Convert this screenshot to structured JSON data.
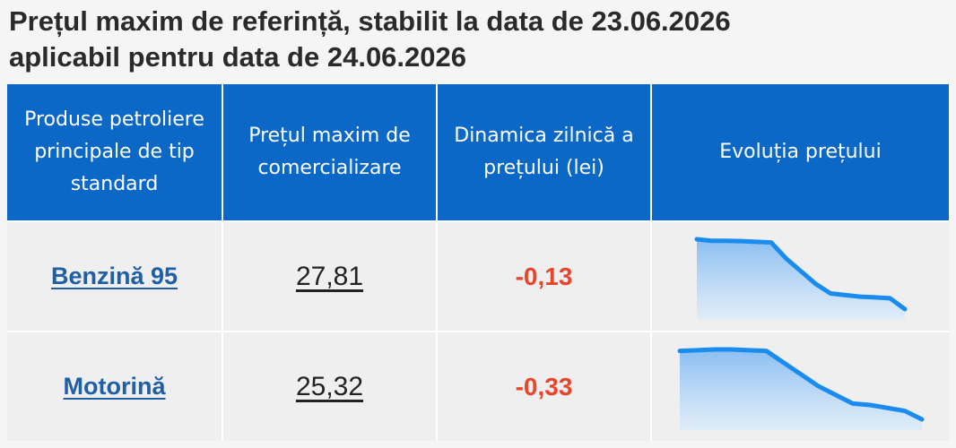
{
  "header": {
    "title_line1": "Prețul maxim de referință, stabilit la data de 23.06.2026",
    "title_line2": "aplicabil pentru data de 24.06.2026"
  },
  "table": {
    "col_product": "Produse petroliere principale de tip standard",
    "col_price": "Prețul maxim de comercializare",
    "col_delta": "Dinamica zilnică a prețului (lei)",
    "col_trend": "Evoluția prețului"
  },
  "rows": [
    {
      "product": "Benzină 95",
      "price": "27,81",
      "delta": "-0,13",
      "trend": [
        30.0,
        29.95,
        29.95,
        29.94,
        29.92,
        29.9,
        29.4,
        29.0,
        28.6,
        28.3,
        28.25,
        28.2,
        28.18,
        28.15,
        27.81
      ]
    },
    {
      "product": "Motorină",
      "price": "25,32",
      "delta": "-0,33",
      "trend": [
        30.0,
        30.05,
        30.1,
        30.1,
        30.05,
        30.0,
        29.2,
        28.4,
        27.6,
        27.0,
        26.4,
        26.3,
        26.1,
        25.9,
        25.32
      ]
    }
  ],
  "colors": {
    "header_bg": "#0b68c6",
    "link": "#1f5fa6",
    "delta_negative": "#e8462b",
    "spark_line": "#1a8cf0"
  }
}
